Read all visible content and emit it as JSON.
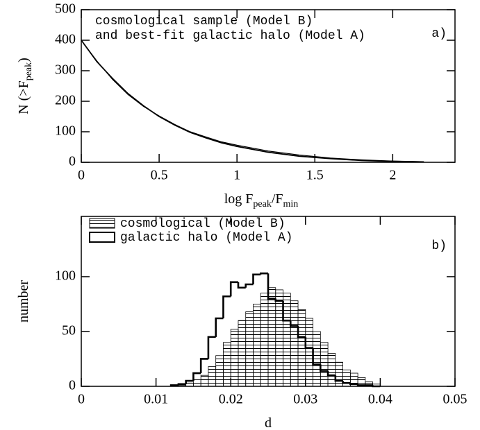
{
  "chart_data": [
    {
      "type": "line",
      "annotations": [
        "cosmological sample (Model B)",
        "and best-fit galactic halo (Model A)"
      ],
      "panel_label": "a)",
      "xlabel": [
        "log F",
        "peak",
        "/F",
        "min"
      ],
      "ylabel": [
        "N (>F",
        "peak",
        ")"
      ],
      "x": [
        0,
        0.1,
        0.2,
        0.3,
        0.4,
        0.5,
        0.6,
        0.7,
        0.8,
        0.9,
        1.0,
        1.2,
        1.4,
        1.6,
        1.8,
        2.0,
        2.2
      ],
      "series": [
        {
          "color": "#000000",
          "values": [
            400,
            330,
            275,
            225,
            185,
            150,
            122,
            98,
            80,
            64,
            52,
            33,
            20,
            12,
            6,
            3,
            1
          ]
        },
        {
          "color": "#000000",
          "values": [
            400,
            332,
            272,
            222,
            183,
            152,
            124,
            100,
            83,
            67,
            56,
            37,
            24,
            14,
            8,
            4,
            2
          ]
        }
      ],
      "xlim": [
        0,
        2.4
      ],
      "xticks": [
        0,
        0.5,
        1,
        1.5,
        2
      ],
      "ylim": [
        0,
        500
      ],
      "yticks": [
        0,
        100,
        200,
        300,
        400,
        500
      ]
    },
    {
      "type": "histogram",
      "panel_label": "b)",
      "xlabel": [
        "d"
      ],
      "ylabel": [
        "number"
      ],
      "bins": [
        0.012,
        0.013,
        0.014,
        0.015,
        0.016,
        0.017,
        0.018,
        0.019,
        0.02,
        0.021,
        0.022,
        0.023,
        0.024,
        0.025,
        0.026,
        0.027,
        0.028,
        0.029,
        0.03,
        0.031,
        0.032,
        0.033,
        0.034,
        0.035,
        0.036,
        0.037,
        0.038,
        0.039,
        0.04
      ],
      "series": [
        {
          "name": "cosmological (Model B)",
          "color": "#000000",
          "hatch": true,
          "values": [
            0,
            1,
            3,
            6,
            10,
            18,
            28,
            40,
            52,
            60,
            68,
            75,
            85,
            90,
            88,
            85,
            78,
            70,
            62,
            50,
            40,
            30,
            22,
            15,
            12,
            8,
            4,
            2
          ]
        },
        {
          "name": "galactic halo (Model A)",
          "color": "#000000",
          "hatch": false,
          "values": [
            1,
            2,
            5,
            12,
            25,
            45,
            62,
            82,
            95,
            90,
            93,
            102,
            103,
            80,
            78,
            60,
            55,
            45,
            35,
            20,
            14,
            10,
            5,
            3,
            2,
            1,
            1,
            0
          ]
        }
      ],
      "xlim": [
        0,
        0.05
      ],
      "xticks": [
        0,
        0.01,
        0.02,
        0.03,
        0.04,
        0.05
      ],
      "ylim": [
        0,
        155
      ],
      "yticks": [
        0,
        50,
        100
      ],
      "legend": "top-left"
    }
  ]
}
